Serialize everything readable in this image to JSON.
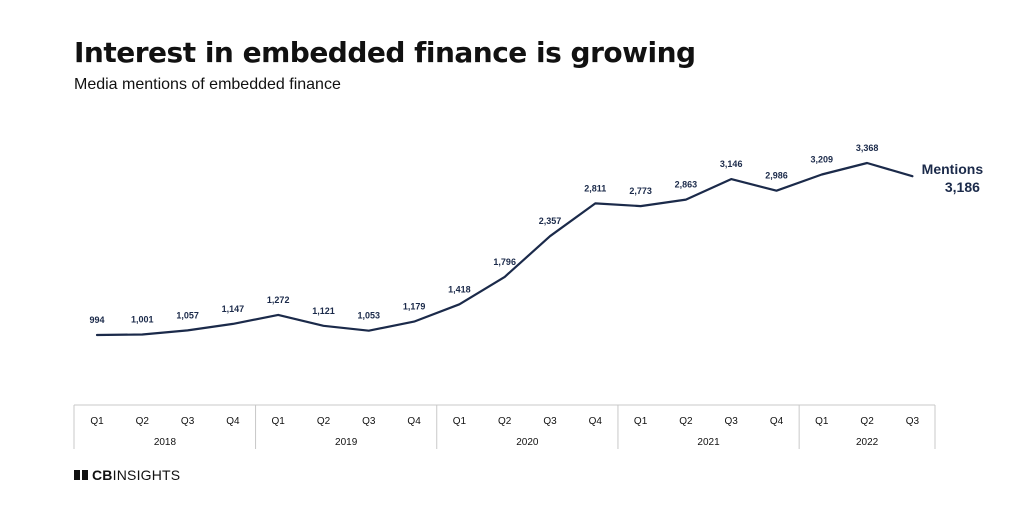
{
  "header": {
    "title": "Interest in embedded finance is growing",
    "subtitle": "Media mentions of embedded finance"
  },
  "brand": {
    "strong": "CB",
    "light": "INSIGHTS"
  },
  "colors": {
    "line": "#1b2a4a",
    "text": "#111111",
    "axis": "#c8c8c8"
  },
  "chart_data": {
    "type": "line",
    "title": "Interest in embedded finance is growing",
    "subtitle": "Media mentions of embedded finance",
    "categories": [
      "Q1",
      "Q2",
      "Q3",
      "Q4",
      "Q1",
      "Q2",
      "Q3",
      "Q4",
      "Q1",
      "Q2",
      "Q3",
      "Q4",
      "Q1",
      "Q2",
      "Q3",
      "Q4",
      "Q1",
      "Q2",
      "Q3"
    ],
    "groups": [
      {
        "label": "2018",
        "count": 4
      },
      {
        "label": "2019",
        "count": 4
      },
      {
        "label": "2020",
        "count": 4
      },
      {
        "label": "2021",
        "count": 4
      },
      {
        "label": "2022",
        "count": 3
      }
    ],
    "series": [
      {
        "name": "Mentions",
        "values": [
          994,
          1001,
          1057,
          1147,
          1272,
          1121,
          1053,
          1179,
          1418,
          1796,
          2357,
          2811,
          2773,
          2863,
          3146,
          2986,
          3209,
          3368,
          3186
        ],
        "labels": [
          "994",
          "1,001",
          "1,057",
          "1,147",
          "1,272",
          "1,121",
          "1,053",
          "1,179",
          "1,418",
          "1,796",
          "2,357",
          "2,811",
          "2,773",
          "2,863",
          "3,146",
          "2,986",
          "3,209",
          "3,368",
          "3,186"
        ]
      }
    ],
    "ylim": [
      0,
      3500
    ],
    "grid": false,
    "legend": "end-label"
  }
}
